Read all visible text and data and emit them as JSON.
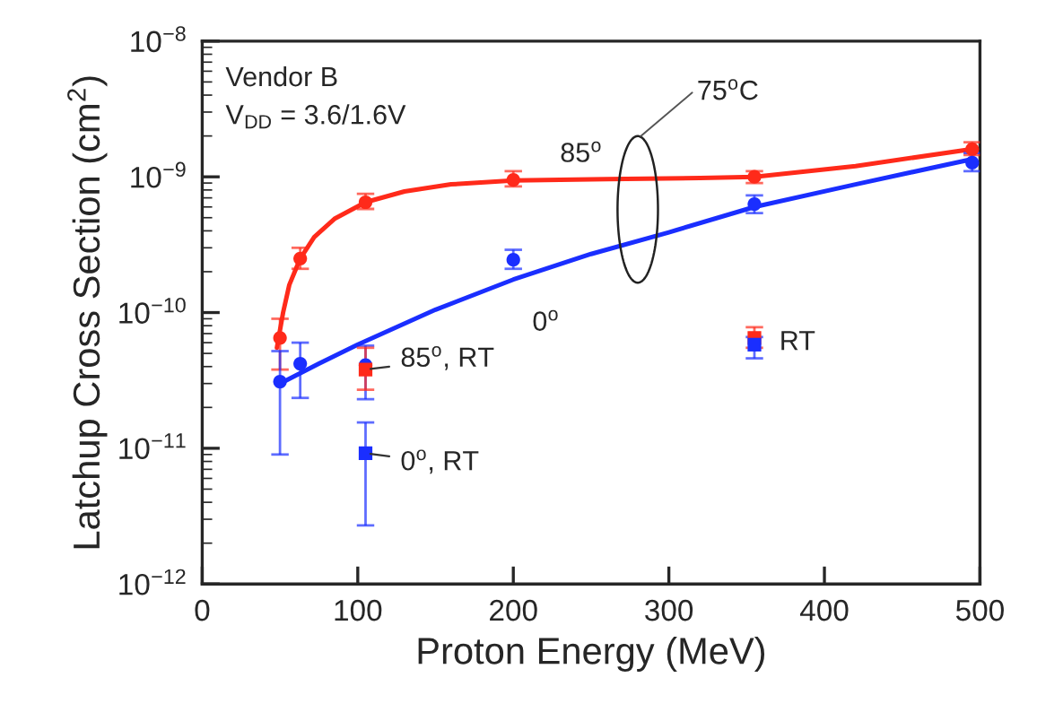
{
  "chart_data": {
    "type": "scatter",
    "xlabel": "Proton Energy (MeV)",
    "ylabel": "Latchup Cross Section (cm$^{2}$)",
    "xlim": [
      0,
      500
    ],
    "xticks": [
      0,
      100,
      200,
      300,
      400,
      500
    ],
    "log": "y",
    "ylim": [
      1e-12,
      1e-08
    ],
    "yticks": [
      {
        "value": 1e-12,
        "label": "10$^{−12}$"
      },
      {
        "value": 1e-11,
        "label": "10$^{−11}$"
      },
      {
        "value": 1e-10,
        "label": "10$^{−10}$"
      },
      {
        "value": 1e-09,
        "label": "10$^{−9}$"
      },
      {
        "value": 1e-08,
        "label": "10$^{−8}$"
      }
    ],
    "grid": false,
    "legend": false,
    "series": [
      {
        "type": "line",
        "color": "#ff2a1a",
        "marker": "none",
        "line_style": "solid",
        "x": [
          48,
          52,
          56,
          63,
          72,
          85,
          105,
          130,
          160,
          200,
          260,
          320,
          355,
          420,
          495
        ],
        "values": [
          5.5e-11,
          1e-10,
          1.6e-10,
          2.5e-10,
          3.6e-10,
          4.9e-10,
          6.5e-10,
          7.8e-10,
          8.8e-10,
          9.4e-10,
          9.6e-10,
          9.8e-10,
          1e-09,
          1.2e-09,
          1.6e-09
        ]
      },
      {
        "type": "line",
        "color": "#1a2eff",
        "marker": "none",
        "line_style": "solid",
        "x": [
          50,
          75,
          100,
          150,
          200,
          250,
          300,
          355,
          420,
          495
        ],
        "values": [
          3e-11,
          4.2e-11,
          5.8e-11,
          1.05e-10,
          1.75e-10,
          2.7e-10,
          3.9e-10,
          6e-10,
          8.8e-10,
          1.35e-09
        ]
      },
      {
        "color": "#ff2a1a",
        "marker": "circle",
        "x": [
          50,
          63,
          105,
          200,
          355,
          495
        ],
        "values": [
          6.5e-11,
          2.5e-10,
          6.5e-10,
          9.5e-10,
          1e-09,
          1.6e-09
        ],
        "errors": [
          [
            3.8e-11,
            9e-11
          ],
          [
            2.1e-10,
            3e-10
          ],
          [
            5.8e-10,
            7.5e-10
          ],
          [
            8.5e-10,
            1.1e-09
          ],
          [
            9e-10,
            1.1e-09
          ],
          [
            1.45e-09,
            1.8e-09
          ]
        ]
      },
      {
        "color": "#1a2eff",
        "marker": "circle",
        "x": [
          50,
          63,
          105,
          200,
          355,
          495
        ],
        "values": [
          3.1e-11,
          4.2e-11,
          4.1e-11,
          2.45e-10,
          6.3e-10,
          1.27e-09
        ],
        "errors": [
          [
            9e-12,
            5.2e-11
          ],
          [
            2.35e-11,
            6e-11
          ],
          [
            2.3e-11,
            5.7e-11
          ],
          [
            2.1e-10,
            2.9e-10
          ],
          [
            5.4e-10,
            7.3e-10
          ],
          [
            1.1e-09,
            1.5e-09
          ]
        ]
      },
      {
        "color": "#ff2a1a",
        "marker": "square",
        "x": [
          105,
          355
        ],
        "values": [
          3.8e-11,
          6.5e-11
        ],
        "errors": [
          [
            2.7e-11,
            5.5e-11
          ],
          [
            5.5e-11,
            7.8e-11
          ]
        ]
      },
      {
        "color": "#1a2eff",
        "marker": "square",
        "x": [
          105,
          355
        ],
        "values": [
          9.2e-12,
          5.8e-11
        ],
        "errors": [
          [
            2.7e-12,
            1.55e-11
          ],
          [
            4.6e-11,
            6.6e-11
          ]
        ]
      }
    ],
    "annotations": [
      "Vendor B",
      "V$_{DD}$ = 3.6/1.6V",
      "75$^{o}$C",
      {
        "text": "85$^{o}$",
        "x": 230,
        "y": 9.5e-10
      },
      {
        "text": "0$^{o}$",
        "x": 225,
        "y": 2.1e-10
      },
      {
        "text": "85$^{o}$, RT",
        "x": 105,
        "y": 3.8e-11
      },
      {
        "text": "0$^{o}$, RT",
        "x": 105,
        "y": 9.2e-12
      },
      {
        "text": "RT",
        "x": 355,
        "y": 6.5e-11
      }
    ]
  }
}
